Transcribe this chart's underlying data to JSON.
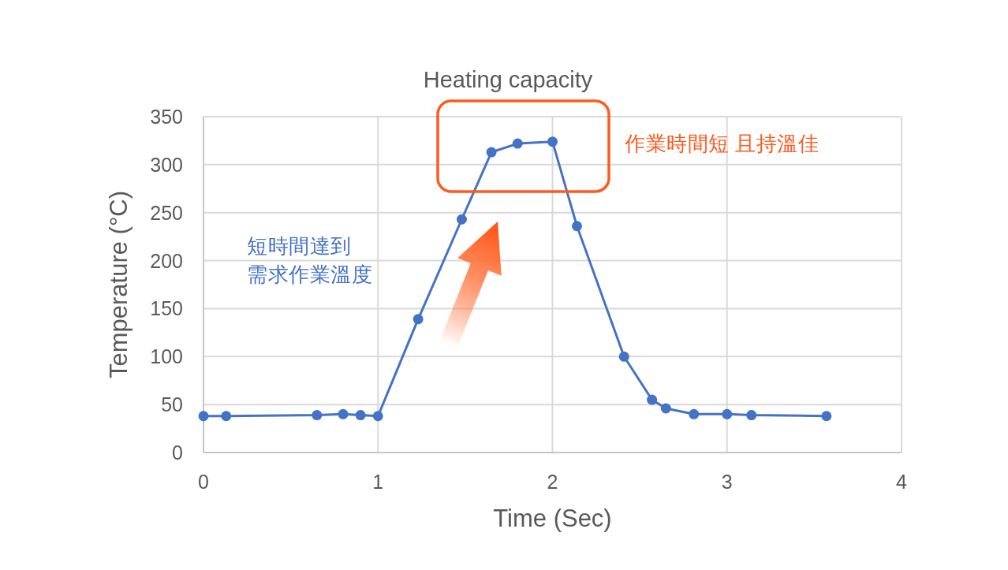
{
  "chart_data": {
    "type": "line",
    "title": "Heating capacity",
    "xlabel": "Time (Sec)",
    "ylabel": "Temperature (°C)",
    "x": [
      0,
      0.13,
      0.65,
      0.8,
      0.9,
      1.0,
      1.23,
      1.48,
      1.65,
      1.8,
      2.0,
      2.14,
      2.41,
      2.57,
      2.65,
      2.81,
      3.0,
      3.14,
      3.57
    ],
    "series": [
      {
        "color": "#4472c4",
        "values": [
          38,
          38,
          39,
          40,
          39,
          38,
          139,
          243,
          313,
          322,
          324,
          236,
          100,
          55,
          46,
          40,
          40,
          39,
          38
        ]
      }
    ],
    "xlim": [
      0,
      4
    ],
    "ylim": [
      0,
      350
    ],
    "xticks": [
      0,
      1,
      2,
      3,
      4
    ],
    "yticks": [
      0,
      50,
      100,
      150,
      200,
      250,
      300,
      350
    ],
    "grid": true,
    "marker": "circle",
    "line_style": "solid",
    "annotations": [
      "短時間達到需求作業溫度",
      "作業時間短 且持溫佳"
    ]
  }
}
